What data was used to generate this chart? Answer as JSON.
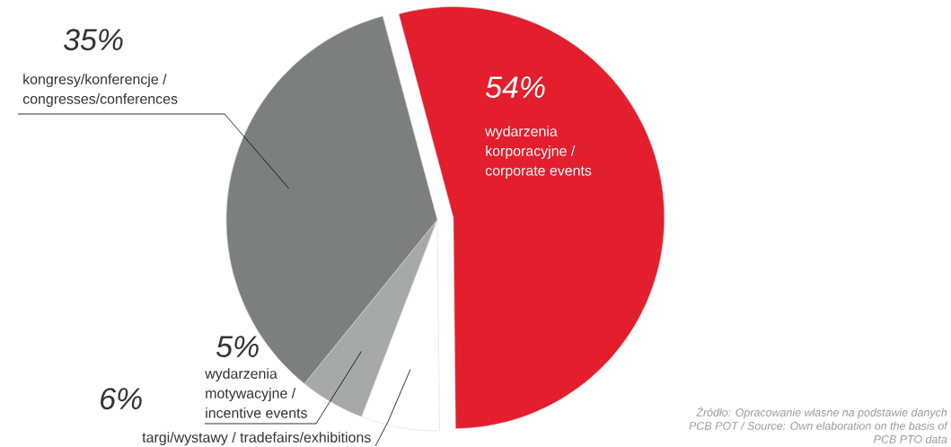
{
  "chart_data": {
    "type": "pie",
    "categories": [
      "wydarzenia korporacyjne / corporate events",
      "targi/wystawy / tradefairs/exhibitions",
      "wydarzenia motywacyjne / incentive events",
      "kongresy/konferencje / congresses/conferences"
    ],
    "values": [
      54,
      6,
      5,
      35
    ],
    "value_labels": [
      "54%",
      "6%",
      "5%",
      "35%"
    ],
    "colors": [
      "#e31e2d",
      "#ffffff",
      "#a5a9aa",
      "#7c7f80"
    ],
    "annotations": [
      "Źródło: Opracowanie własne na podstawie danych PCB POT / Source: Own elaboration on the basis of PCB PTO data"
    ]
  }
}
